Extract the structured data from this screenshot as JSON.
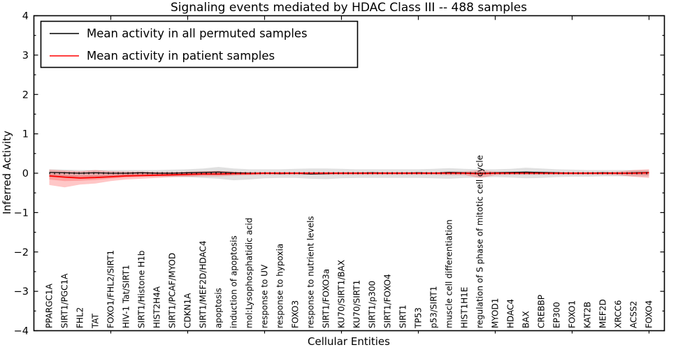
{
  "title": "Signaling events mediated by HDAC Class III -- 488 samples",
  "axes": {
    "xlabel": "Cellular Entities",
    "ylabel": "Inferred Activity",
    "ylim": [
      -4,
      4
    ],
    "yticks": [
      4,
      3,
      2,
      1,
      0,
      -1,
      -2,
      -3,
      -4
    ],
    "grid": false
  },
  "legend": {
    "position": "upper-left",
    "entries": [
      {
        "label": "Mean activity in all permuted samples",
        "color": "#000000"
      },
      {
        "label": "Mean activity in patient samples",
        "color": "#ff0000"
      }
    ]
  },
  "chart_data": {
    "type": "line",
    "title": "Signaling events mediated by HDAC Class III -- 488 samples",
    "xlabel": "Cellular Entities",
    "ylabel": "Inferred Activity",
    "ylim": [
      -4,
      4
    ],
    "xtick_every": 5,
    "categories": [
      "PPARGC1A",
      "SIRT1/PGC1A",
      "FHL2",
      "TAT",
      "FOXO1/FHL2/SIRT1",
      "HIV-1 Tat/SIRT1",
      "SIRT1/Histone H1b",
      "HIST2H4A",
      "SIRT1/PCAF/MYOD",
      "CDKN1A",
      "SIRT1/MEF2D/HDAC4",
      "apoptosis",
      "induction of apoptosis",
      "mol:Lysophosphatidic acid",
      "response to UV",
      "response to hypoxia",
      "FOXO3",
      "response to nutrient levels",
      "SIRT1/FOXO3a",
      "KU70/SIRT1/BAX",
      "KU70/SIRT1",
      "SIRT1/p300",
      "SIRT1/FOXO4",
      "SIRT1",
      "TP53",
      "p53/SIRT1",
      "muscle cell differentiation",
      "HIST1H1E",
      "regulation of S phase of mitotic cell cycle",
      "MYOD1",
      "HDAC4",
      "BAX",
      "CREBBP",
      "EP300",
      "FOXO1",
      "KAT2B",
      "MEF2D",
      "XRCC6",
      "ACSS2",
      "FOXO4"
    ],
    "series": [
      {
        "name": "Mean activity in all permuted samples",
        "color": "#000000",
        "values": [
          0.02,
          0.01,
          0.0,
          0.01,
          0.0,
          0.0,
          0.01,
          0.0,
          0.0,
          0.01,
          0.02,
          0.03,
          0.01,
          0.0,
          0.0,
          -0.01,
          0.0,
          -0.02,
          -0.01,
          0.0,
          0.0,
          0.01,
          0.0,
          0.0,
          0.01,
          0.0,
          0.02,
          0.01,
          0.0,
          0.01,
          0.02,
          0.03,
          0.02,
          0.01,
          0.0,
          0.0,
          0.01,
          0.0,
          0.01,
          0.02
        ]
      },
      {
        "name": "Mean activity in patient samples",
        "color": "#ff0000",
        "values": [
          -0.07,
          -0.1,
          -0.12,
          -0.11,
          -0.09,
          -0.07,
          -0.06,
          -0.05,
          -0.04,
          -0.03,
          -0.02,
          -0.02,
          -0.01,
          -0.01,
          0.0,
          0.0,
          0.0,
          0.0,
          0.0,
          0.0,
          0.0,
          0.0,
          0.0,
          0.0,
          0.0,
          0.0,
          0.0,
          0.0,
          -0.01,
          0.0,
          0.0,
          0.0,
          0.0,
          0.0,
          0.0,
          0.0,
          0.0,
          0.0,
          0.0,
          0.01
        ]
      }
    ],
    "bands": [
      {
        "name": "permuted-samples-band",
        "color": "#000000",
        "opacity": 0.12,
        "upper": [
          0.1,
          0.09,
          0.08,
          0.08,
          0.08,
          0.08,
          0.08,
          0.08,
          0.09,
          0.1,
          0.12,
          0.16,
          0.12,
          0.1,
          0.1,
          0.1,
          0.11,
          0.12,
          0.12,
          0.11,
          0.1,
          0.1,
          0.1,
          0.1,
          0.1,
          0.11,
          0.13,
          0.11,
          0.1,
          0.1,
          0.11,
          0.14,
          0.12,
          0.1,
          0.09,
          0.08,
          0.08,
          0.08,
          0.08,
          0.08
        ],
        "lower": [
          -0.1,
          -0.1,
          -0.09,
          -0.09,
          -0.08,
          -0.08,
          -0.08,
          -0.08,
          -0.09,
          -0.1,
          -0.12,
          -0.14,
          -0.18,
          -0.16,
          -0.13,
          -0.12,
          -0.12,
          -0.14,
          -0.15,
          -0.13,
          -0.12,
          -0.12,
          -0.12,
          -0.12,
          -0.12,
          -0.13,
          -0.14,
          -0.12,
          -0.11,
          -0.1,
          -0.11,
          -0.13,
          -0.12,
          -0.1,
          -0.09,
          -0.09,
          -0.08,
          -0.08,
          -0.08,
          -0.08
        ]
      },
      {
        "name": "patient-samples-outer-band",
        "color": "#ff0000",
        "opacity": 0.22,
        "upper": [
          0.09,
          0.07,
          0.05,
          0.08,
          0.05,
          0.04,
          0.04,
          0.03,
          0.03,
          0.04,
          0.05,
          0.06,
          0.04,
          0.03,
          0.03,
          0.03,
          0.03,
          0.03,
          0.03,
          0.03,
          0.03,
          0.03,
          0.03,
          0.03,
          0.03,
          0.03,
          0.04,
          0.04,
          0.08,
          0.04,
          0.03,
          0.03,
          0.03,
          0.03,
          0.03,
          0.03,
          0.03,
          0.04,
          0.08,
          0.1
        ],
        "lower": [
          -0.3,
          -0.36,
          -0.29,
          -0.26,
          -0.2,
          -0.16,
          -0.14,
          -0.12,
          -0.1,
          -0.09,
          -0.08,
          -0.08,
          -0.06,
          -0.05,
          -0.04,
          -0.04,
          -0.04,
          -0.04,
          -0.04,
          -0.04,
          -0.04,
          -0.04,
          -0.04,
          -0.04,
          -0.04,
          -0.04,
          -0.05,
          -0.05,
          -0.12,
          -0.05,
          -0.04,
          -0.04,
          -0.04,
          -0.04,
          -0.04,
          -0.04,
          -0.04,
          -0.05,
          -0.09,
          -0.12
        ]
      },
      {
        "name": "patient-samples-inner-band",
        "color": "#ff0000",
        "opacity": 0.2,
        "upper": [
          -0.02,
          -0.04,
          -0.06,
          -0.05,
          -0.04,
          -0.02,
          -0.01,
          0.0,
          0.01,
          0.01,
          0.01,
          0.02,
          0.01,
          0.01,
          0.01,
          0.01,
          0.01,
          0.01,
          0.01,
          0.01,
          0.01,
          0.01,
          0.01,
          0.01,
          0.01,
          0.01,
          0.01,
          0.01,
          0.02,
          0.01,
          0.01,
          0.01,
          0.01,
          0.01,
          0.01,
          0.01,
          0.01,
          0.01,
          0.02,
          0.03
        ],
        "lower": [
          -0.16,
          -0.2,
          -0.19,
          -0.17,
          -0.14,
          -0.11,
          -0.09,
          -0.08,
          -0.07,
          -0.06,
          -0.05,
          -0.05,
          -0.04,
          -0.03,
          -0.02,
          -0.02,
          -0.02,
          -0.02,
          -0.02,
          -0.02,
          -0.02,
          -0.02,
          -0.02,
          -0.02,
          -0.02,
          -0.02,
          -0.02,
          -0.02,
          -0.04,
          -0.02,
          -0.02,
          -0.02,
          -0.02,
          -0.02,
          -0.02,
          -0.02,
          -0.02,
          -0.02,
          -0.03,
          -0.04
        ]
      }
    ],
    "zero_line": {
      "y": 0,
      "style": "dotted",
      "color": "#000000"
    }
  }
}
